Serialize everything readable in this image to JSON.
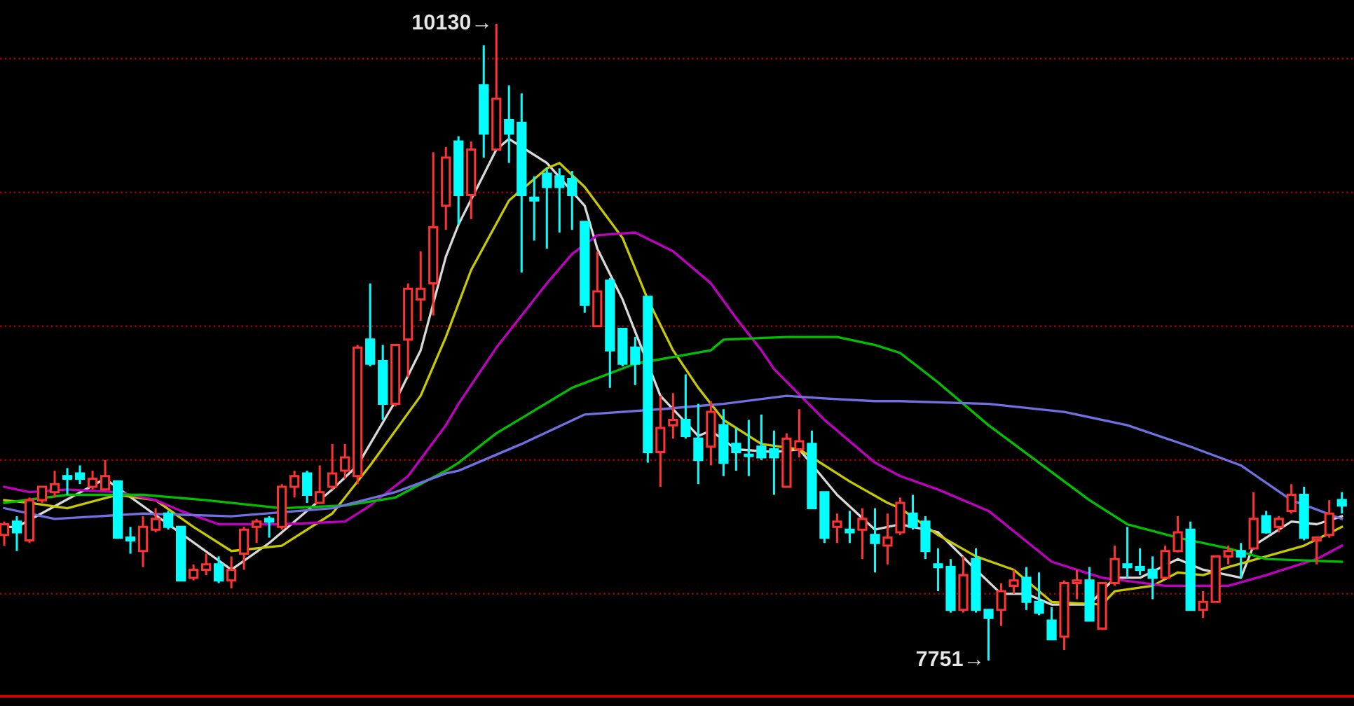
{
  "chart_data": {
    "type": "candlestick",
    "categories": [
      null,
      null,
      null,
      null,
      null,
      null,
      null,
      null,
      null,
      null,
      null,
      null,
      null,
      null,
      null,
      null,
      null,
      null,
      null,
      null,
      null,
      null,
      null,
      null,
      null,
      null,
      null,
      null,
      null,
      null,
      null,
      null,
      null,
      null,
      null,
      null,
      null,
      null,
      null,
      null,
      null,
      null,
      null,
      null,
      null,
      null,
      null,
      null,
      null,
      null,
      null,
      null,
      null,
      null,
      null,
      null,
      null,
      null,
      null,
      null,
      null,
      null,
      null,
      null,
      null,
      null,
      null,
      null,
      null,
      null,
      null,
      null,
      null,
      null,
      null,
      null,
      null,
      null,
      null,
      null,
      null,
      null,
      null,
      null,
      null,
      null,
      null,
      null,
      null,
      null,
      null,
      null,
      null,
      null,
      null,
      null,
      null,
      null,
      null,
      null,
      null,
      null,
      null,
      null,
      null,
      null,
      null
    ],
    "ohlc": [
      [
        8220,
        8270,
        8180,
        8260
      ],
      [
        8270,
        8290,
        8160,
        8230
      ],
      [
        8200,
        8360,
        8190,
        8350
      ],
      [
        8350,
        8400,
        8340,
        8400
      ],
      [
        8380,
        8460,
        8360,
        8410
      ],
      [
        8440,
        8470,
        8370,
        8430
      ],
      [
        8450,
        8480,
        8410,
        8430
      ],
      [
        8400,
        8460,
        8390,
        8430
      ],
      [
        8390,
        8500,
        8390,
        8440
      ],
      [
        8420,
        8420,
        8210,
        8210
      ],
      [
        8210,
        8250,
        8150,
        8200
      ],
      [
        8160,
        8290,
        8100,
        8250
      ],
      [
        8240,
        8320,
        8230,
        8280
      ],
      [
        8300,
        8310,
        8240,
        8250
      ],
      [
        8250,
        8250,
        8050,
        8050
      ],
      [
        8060,
        8110,
        8050,
        8090
      ],
      [
        8090,
        8150,
        8070,
        8110
      ],
      [
        8110,
        8140,
        8040,
        8050
      ],
      [
        8050,
        8140,
        8020,
        8090
      ],
      [
        8150,
        8250,
        8090,
        8240
      ],
      [
        8250,
        8280,
        8190,
        8270
      ],
      [
        8280,
        8290,
        8210,
        8270
      ],
      [
        8250,
        8410,
        8240,
        8400
      ],
      [
        8400,
        8460,
        8360,
        8440
      ],
      [
        8450,
        8460,
        8340,
        8370
      ],
      [
        8340,
        8480,
        8340,
        8380
      ],
      [
        8400,
        8560,
        8390,
        8450
      ],
      [
        8460,
        8560,
        8430,
        8510
      ],
      [
        8440,
        8930,
        8410,
        8920
      ],
      [
        8950,
        9160,
        8850,
        8860
      ],
      [
        8870,
        8930,
        8650,
        8710
      ],
      [
        8710,
        8930,
        8700,
        8930
      ],
      [
        8950,
        9160,
        8810,
        9140
      ],
      [
        9100,
        9280,
        9020,
        9140
      ],
      [
        9160,
        9650,
        9040,
        9370
      ],
      [
        9450,
        9670,
        9360,
        9630
      ],
      [
        9690,
        9710,
        9380,
        9490
      ],
      [
        9490,
        9690,
        9400,
        9660
      ],
      [
        9900,
        10050,
        9630,
        9720
      ],
      [
        9660,
        10130,
        9660,
        9850
      ],
      [
        9770,
        9900,
        9610,
        9720
      ],
      [
        9760,
        9870,
        9200,
        9490
      ],
      [
        9480,
        9560,
        9320,
        9470
      ],
      [
        9570,
        9590,
        9290,
        9520
      ],
      [
        9560,
        9590,
        9350,
        9520
      ],
      [
        9550,
        9580,
        9360,
        9490
      ],
      [
        9390,
        9390,
        9050,
        9080
      ],
      [
        9000,
        9280,
        9000,
        9130
      ],
      [
        9170,
        9180,
        8770,
        8910
      ],
      [
        8990,
        8990,
        8850,
        8860
      ],
      [
        8920,
        8960,
        8780,
        8860
      ],
      [
        9110,
        9110,
        8490,
        8530
      ],
      [
        8530,
        8740,
        8400,
        8620
      ],
      [
        8630,
        8750,
        8580,
        8650
      ],
      [
        8650,
        8820,
        8580,
        8590
      ],
      [
        8580,
        8710,
        8410,
        8500
      ],
      [
        8550,
        8720,
        8480,
        8680
      ],
      [
        8630,
        8690,
        8440,
        8490
      ],
      [
        8560,
        8620,
        8460,
        8530
      ],
      [
        8520,
        8650,
        8440,
        8515
      ],
      [
        8550,
        8670,
        8500,
        8510
      ],
      [
        8540,
        8610,
        8370,
        8510
      ],
      [
        8400,
        8600,
        8400,
        8580
      ],
      [
        8540,
        8690,
        8510,
        8570
      ],
      [
        8560,
        8610,
        8320,
        8320
      ],
      [
        8380,
        8380,
        8190,
        8210
      ],
      [
        8250,
        8300,
        8190,
        8270
      ],
      [
        8240,
        8310,
        8190,
        8230
      ],
      [
        8240,
        8320,
        8130,
        8280
      ],
      [
        8220,
        8320,
        8080,
        8190
      ],
      [
        8180,
        8300,
        8110,
        8210
      ],
      [
        8230,
        8360,
        8220,
        8340
      ],
      [
        8300,
        8370,
        8240,
        8250
      ],
      [
        8270,
        8290,
        8130,
        8160
      ],
      [
        8110,
        8170,
        8010,
        8100
      ],
      [
        8100,
        8130,
        7930,
        7940
      ],
      [
        7940,
        8140,
        7930,
        8070
      ],
      [
        8130,
        8170,
        7930,
        7940
      ],
      [
        7940,
        7940,
        7751,
        7910
      ],
      [
        7940,
        8040,
        7880,
        8010
      ],
      [
        8030,
        8090,
        8000,
        8050
      ],
      [
        8060,
        8100,
        7940,
        7970
      ],
      [
        7970,
        8080,
        7920,
        7930
      ],
      [
        7900,
        7950,
        7830,
        7830
      ],
      [
        7840,
        8050,
        7790,
        8040
      ],
      [
        8040,
        8090,
        7980,
        8050
      ],
      [
        8050,
        8100,
        7900,
        7900
      ],
      [
        7870,
        8040,
        7865,
        8040
      ],
      [
        8040,
        8180,
        8030,
        8130
      ],
      [
        8110,
        8250,
        8060,
        8100
      ],
      [
        8100,
        8170,
        8070,
        8090
      ],
      [
        8090,
        8140,
        7980,
        8060
      ],
      [
        8060,
        8180,
        8060,
        8160
      ],
      [
        8160,
        8290,
        8155,
        8230
      ],
      [
        8240,
        8270,
        7940,
        7940
      ],
      [
        7940,
        8010,
        7910,
        7970
      ],
      [
        7970,
        8140,
        7970,
        8140
      ],
      [
        8140,
        8180,
        8110,
        8160
      ],
      [
        8160,
        8190,
        8060,
        8140
      ],
      [
        8170,
        8380,
        8165,
        8280
      ],
      [
        8290,
        8310,
        8225,
        8230
      ],
      [
        8250,
        8290,
        8230,
        8280
      ],
      [
        8310,
        8410,
        8300,
        8370
      ],
      [
        8370,
        8400,
        8200,
        8210
      ],
      [
        8200,
        8215,
        8110,
        8210
      ],
      [
        8220,
        8350,
        8210,
        8300
      ],
      [
        8350,
        8380,
        8300,
        8330
      ]
    ],
    "colors": [
      "#ff3232",
      "#00ffff",
      "#ff3232",
      "#ff3232",
      "#ff3232",
      "#00ffff",
      "#00ffff",
      "#ff3232",
      "#ff3232",
      "#00ffff",
      "#00ffff",
      "#ff3232",
      "#ff3232",
      "#00ffff",
      "#00ffff",
      "#ff3232",
      "#ff3232",
      "#00ffff",
      "#ff3232",
      "#ff3232",
      "#ff3232",
      "#00ffff",
      "#ff3232",
      "#ff3232",
      "#00ffff",
      "#ff3232",
      "#ff3232",
      "#ff3232",
      "#ff3232",
      "#00ffff",
      "#00ffff",
      "#ff3232",
      "#ff3232",
      "#ff3232",
      "#ff3232",
      "#ff3232",
      "#00ffff",
      "#ff3232",
      "#00ffff",
      "#ff3232",
      "#00ffff",
      "#00ffff",
      "#00ffff",
      "#00ffff",
      "#00ffff",
      "#00ffff",
      "#00ffff",
      "#ff3232",
      "#00ffff",
      "#00ffff",
      "#00ffff",
      "#00ffff",
      "#ff3232",
      "#ff3232",
      "#00ffff",
      "#00ffff",
      "#ff3232",
      "#00ffff",
      "#00ffff",
      "#00ffff",
      "#00ffff",
      "#00ffff",
      "#ff3232",
      "#ff3232",
      "#00ffff",
      "#00ffff",
      "#ff3232",
      "#00ffff",
      "#ff3232",
      "#00ffff",
      "#ff3232",
      "#ff3232",
      "#00ffff",
      "#00ffff",
      "#00ffff",
      "#00ffff",
      "#ff3232",
      "#00ffff",
      "#00ffff",
      "#ff3232",
      "#ff3232",
      "#00ffff",
      "#00ffff",
      "#00ffff",
      "#ff3232",
      "#ff3232",
      "#00ffff",
      "#ff3232",
      "#ff3232",
      "#00ffff",
      "#00ffff",
      "#00ffff",
      "#ff3232",
      "#ff3232",
      "#00ffff",
      "#ff3232",
      "#ff3232",
      "#ff3232",
      "#00ffff",
      "#ff3232",
      "#00ffff",
      "#ff3232",
      "#ff3232",
      "#00ffff",
      "#ff3232",
      "#ff3232",
      "#00ffff"
    ],
    "series": [
      {
        "type": "line",
        "color": "#d8d8d8",
        "values": [
          8250,
          8250,
          null,
          null,
          null,
          null,
          null,
          null,
          8430,
          null,
          null,
          null,
          null,
          null,
          null,
          null,
          null,
          null,
          8090,
          null,
          null,
          8190,
          null,
          null,
          null,
          null,
          8390,
          null,
          8480,
          null,
          null,
          8720,
          null,
          8910,
          null,
          9260,
          9380,
          null,
          null,
          9660,
          9700,
          null,
          null,
          9610,
          null,
          null,
          9450,
          9290,
          null,
          9100,
          null,
          null,
          8740,
          null,
          null,
          8590,
          8610,
          null,
          8540,
          null,
          null,
          8530,
          null,
          8540,
          null,
          null,
          8370,
          null,
          null,
          8240,
          null,
          8260,
          null,
          null,
          8230,
          null,
          null,
          8090,
          null,
          8000,
          null,
          8000,
          null,
          7960,
          null,
          null,
          7960,
          null,
          8060,
          null,
          8060,
          null,
          null,
          8130,
          null,
          8090,
          null,
          null,
          8060,
          8180,
          null,
          null,
          8270,
          null,
          8260,
          null,
          8290
        ]
      },
      {
        "type": "line",
        "color": "#c8c800",
        "values": [
          8350,
          null,
          8340,
          null,
          null,
          8320,
          null,
          null,
          null,
          8370,
          null,
          null,
          8350,
          null,
          null,
          8250,
          null,
          null,
          8160,
          null,
          null,
          null,
          8180,
          null,
          null,
          null,
          8300,
          null,
          null,
          8480,
          null,
          null,
          null,
          8740,
          null,
          8960,
          null,
          9210,
          null,
          null,
          9470,
          null,
          null,
          9590,
          9610,
          null,
          9520,
          null,
          null,
          9330,
          null,
          9100,
          null,
          8910,
          null,
          8770,
          null,
          8650,
          null,
          null,
          8560,
          null,
          null,
          8540,
          null,
          null,
          null,
          8420,
          null,
          null,
          8340,
          8320,
          null,
          null,
          8220,
          null,
          null,
          8140,
          null,
          null,
          8090,
          null,
          null,
          7970,
          null,
          null,
          null,
          7960,
          8010,
          null,
          null,
          8030,
          null,
          8080,
          null,
          8070,
          null,
          8100,
          null,
          null,
          8140,
          null,
          null,
          8180,
          null,
          null,
          8250
        ]
      },
      {
        "type": "line",
        "color": "#c000c0",
        "values": [
          8400,
          null,
          8380,
          null,
          null,
          8390,
          null,
          null,
          null,
          8380,
          null,
          null,
          8350,
          null,
          8310,
          null,
          null,
          8260,
          null,
          null,
          null,
          null,
          8260,
          null,
          null,
          null,
          null,
          8270,
          null,
          8330,
          null,
          null,
          8440,
          null,
          null,
          8630,
          8710,
          null,
          null,
          8920,
          null,
          null,
          null,
          9160,
          null,
          9270,
          null,
          9340,
          null,
          null,
          9350,
          null,
          null,
          9280,
          null,
          null,
          9160,
          null,
          9030,
          null,
          8910,
          8840,
          null,
          null,
          null,
          8650,
          null,
          null,
          null,
          8490,
          null,
          8440,
          null,
          null,
          8390,
          null,
          null,
          null,
          8310,
          null,
          null,
          null,
          null,
          8120,
          null,
          null,
          null,
          8060,
          null,
          null,
          null,
          null,
          8030,
          null,
          null,
          null,
          null,
          8030,
          null,
          null,
          8070,
          null,
          null,
          null,
          8130,
          null,
          8180
        ]
      },
      {
        "type": "line",
        "color": "#00c000",
        "values": [
          8340,
          null,
          null,
          null,
          null,
          8370,
          null,
          null,
          null,
          null,
          null,
          8370,
          null,
          null,
          null,
          null,
          8350,
          null,
          null,
          null,
          null,
          null,
          8320,
          null,
          null,
          null,
          null,
          8330,
          null,
          null,
          null,
          8360,
          null,
          null,
          null,
          8460,
          8490,
          null,
          null,
          8600,
          null,
          null,
          null,
          null,
          null,
          8770,
          null,
          null,
          null,
          null,
          8860,
          null,
          null,
          null,
          null,
          null,
          8910,
          8950,
          null,
          null,
          null,
          null,
          8960,
          null,
          null,
          null,
          8960,
          null,
          null,
          8930,
          null,
          8900,
          null,
          null,
          8790,
          null,
          null,
          null,
          8630,
          null,
          null,
          null,
          8490,
          null,
          null,
          null,
          8350,
          null,
          null,
          8260,
          null,
          null,
          null,
          8210,
          null,
          null,
          null,
          8170,
          null,
          null,
          8130,
          null,
          null,
          null,
          null,
          null,
          8120
        ]
      },
      {
        "type": "line",
        "color": "#7070e0",
        "values": [
          8320,
          null,
          null,
          null,
          8280,
          null,
          null,
          null,
          null,
          null,
          null,
          8300,
          null,
          null,
          null,
          null,
          null,
          null,
          8290,
          null,
          null,
          null,
          null,
          null,
          null,
          null,
          8320,
          null,
          null,
          null,
          null,
          8380,
          null,
          null,
          null,
          8450,
          8460,
          null,
          null,
          null,
          null,
          8560,
          null,
          null,
          null,
          null,
          8670,
          null,
          null,
          null,
          null,
          null,
          8690,
          null,
          null,
          null,
          null,
          8710,
          null,
          null,
          null,
          null,
          8740,
          null,
          null,
          8730,
          null,
          null,
          null,
          8720,
          null,
          8720,
          null,
          null,
          null,
          null,
          null,
          null,
          8710,
          null,
          null,
          null,
          null,
          null,
          8680,
          null,
          null,
          null,
          null,
          8630,
          null,
          null,
          null,
          null,
          8550,
          null,
          null,
          null,
          8480,
          null,
          null,
          null,
          8350,
          null,
          null,
          null,
          8280
        ]
      }
    ],
    "ref_lines": [
      {
        "axis": "y",
        "value": 8000,
        "color": "#a00000",
        "line_style": "dotted"
      },
      {
        "axis": "y",
        "value": 8500,
        "color": "#a00000",
        "line_style": "dotted"
      },
      {
        "axis": "y",
        "value": 9000,
        "color": "#a00000",
        "line_style": "dotted"
      },
      {
        "axis": "y",
        "value": 9500,
        "color": "#a00000",
        "line_style": "dotted"
      },
      {
        "axis": "y",
        "value": 10000,
        "color": "#a00000",
        "line_style": "dotted"
      }
    ],
    "annotations": [
      "10130→",
      "7751→"
    ]
  }
}
